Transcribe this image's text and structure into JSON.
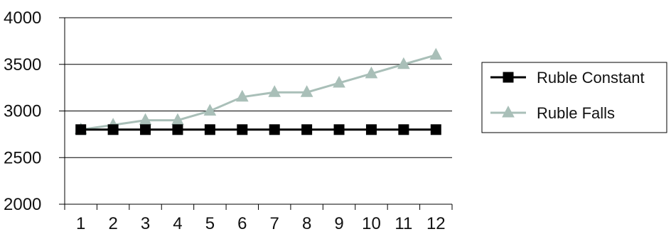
{
  "chart_data": {
    "type": "line",
    "title": "",
    "xlabel": "",
    "ylabel": "",
    "categories": [
      "1",
      "2",
      "3",
      "4",
      "5",
      "6",
      "7",
      "8",
      "9",
      "10",
      "11",
      "12"
    ],
    "ylim": [
      2000,
      4000
    ],
    "yticks": [
      "2000",
      "2500",
      "3000",
      "3500",
      "4000"
    ],
    "grid": true,
    "legend_position": "right",
    "series": [
      {
        "name": "Ruble Constant",
        "values": [
          2800,
          2800,
          2800,
          2800,
          2800,
          2800,
          2800,
          2800,
          2800,
          2800,
          2800,
          2800
        ],
        "color": "#000000",
        "marker": "square"
      },
      {
        "name": "Ruble Falls",
        "values": [
          2800,
          2850,
          2900,
          2900,
          3000,
          3150,
          3200,
          3200,
          3300,
          3400,
          3500,
          3600
        ],
        "color": "#a9bfb8",
        "marker": "triangle"
      }
    ]
  }
}
